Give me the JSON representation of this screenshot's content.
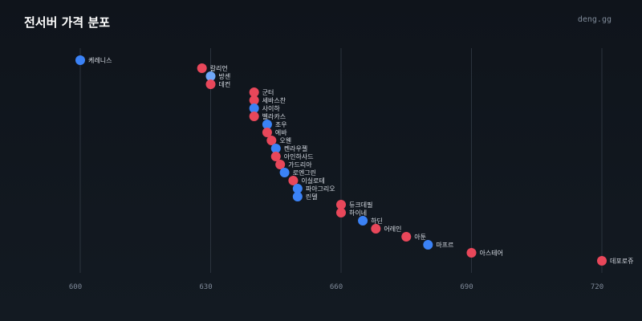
{
  "header": {
    "title": "전서버 가격 분포",
    "brand": "deng.gg"
  },
  "colors": {
    "red": "#e8475a",
    "blue": "#3b82f6",
    "light_blue": "#6ea6f7",
    "grid": "#2b333d"
  },
  "chart_data": {
    "type": "scatter",
    "title": "전서버 가격 분포",
    "xlim": [
      600,
      720
    ],
    "x_ticks": [
      600,
      630,
      660,
      690,
      720
    ],
    "grid": true,
    "points": [
      {
        "label": "케레니스",
        "x": 600,
        "color": "blue"
      },
      {
        "label": "칼리언",
        "x": 628,
        "color": "red"
      },
      {
        "label": "방센",
        "x": 630,
        "color": "light_blue"
      },
      {
        "label": "데컨",
        "x": 630,
        "color": "red"
      },
      {
        "label": "군터",
        "x": 640,
        "color": "red"
      },
      {
        "label": "세바스찬",
        "x": 640,
        "color": "red"
      },
      {
        "label": "사이하",
        "x": 640,
        "color": "blue"
      },
      {
        "label": "벨라카스",
        "x": 640,
        "color": "red"
      },
      {
        "label": "조우",
        "x": 643,
        "color": "blue"
      },
      {
        "label": "에바",
        "x": 643,
        "color": "red"
      },
      {
        "label": "오웬",
        "x": 644,
        "color": "red"
      },
      {
        "label": "켄라우젤",
        "x": 645,
        "color": "blue"
      },
      {
        "label": "아인하사드",
        "x": 645,
        "color": "red"
      },
      {
        "label": "가드리아",
        "x": 646,
        "color": "red"
      },
      {
        "label": "로엔그린",
        "x": 647,
        "color": "blue"
      },
      {
        "label": "이실로테",
        "x": 649,
        "color": "red"
      },
      {
        "label": "파아그리오",
        "x": 650,
        "color": "blue"
      },
      {
        "label": "린델",
        "x": 650,
        "color": "blue"
      },
      {
        "label": "듀크데필",
        "x": 660,
        "color": "red"
      },
      {
        "label": "하이네",
        "x": 660,
        "color": "red"
      },
      {
        "label": "하딘",
        "x": 665,
        "color": "blue"
      },
      {
        "label": "어레인",
        "x": 668,
        "color": "red"
      },
      {
        "label": "아툰",
        "x": 675,
        "color": "red"
      },
      {
        "label": "마프르",
        "x": 680,
        "color": "blue"
      },
      {
        "label": "아스테어",
        "x": 690,
        "color": "red"
      },
      {
        "label": "데포로쥬",
        "x": 720,
        "color": "red"
      }
    ]
  }
}
